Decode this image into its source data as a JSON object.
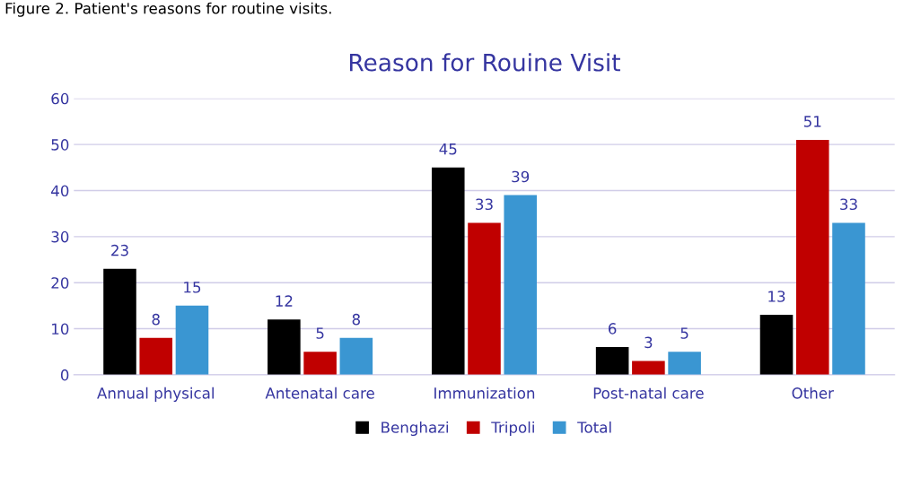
{
  "chart_data": {
    "type": "bar",
    "title": "Reason for Rouine Visit",
    "annotations": [
      "Figure 2. Patient's reasons for routine visits."
    ],
    "categories": [
      "Annual physical",
      "Antenatal care",
      "Immunization",
      "Post-natal care",
      "Other"
    ],
    "series": [
      {
        "name": "Benghazi",
        "color": "#000000",
        "values": [
          23,
          12,
          45,
          6,
          13
        ]
      },
      {
        "name": "Tripoli",
        "color": "#c00000",
        "values": [
          8,
          5,
          33,
          3,
          51
        ]
      },
      {
        "name": "Total",
        "color": "#3a96d2",
        "values": [
          15,
          8,
          39,
          5,
          33
        ]
      }
    ],
    "ylim": [
      0,
      60
    ],
    "yticks": [
      0,
      10,
      20,
      30,
      40,
      50,
      60
    ],
    "grid": "y",
    "legend": "bottom",
    "data_labels": true
  }
}
